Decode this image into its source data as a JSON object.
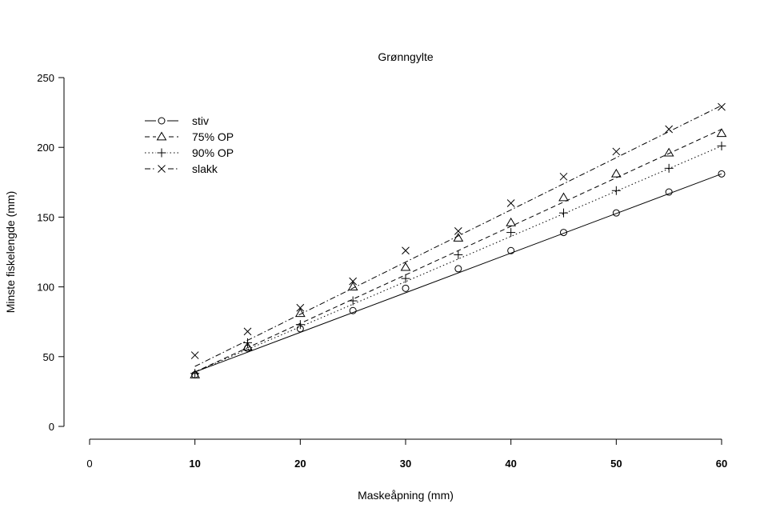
{
  "chart_data": {
    "type": "line",
    "title": "Grønngylte",
    "xlabel": "Maskeåpning (mm)",
    "ylabel": "Minste fiskelengde (mm)",
    "xlim": [
      0,
      60
    ],
    "ylim": [
      0,
      250
    ],
    "xticks": [
      "0",
      "10",
      "20",
      "30",
      "40",
      "50",
      "60"
    ],
    "yticks": [
      "0",
      "50",
      "100",
      "150",
      "200",
      "250"
    ],
    "x": [
      10,
      15,
      20,
      25,
      30,
      35,
      40,
      45,
      50,
      55,
      60
    ],
    "grid": false,
    "legend_position": "top-left",
    "series": [
      {
        "name": "stiv",
        "marker": "circle",
        "line_style": "solid",
        "values": [
          37,
          56,
          70,
          83,
          99,
          113,
          126,
          139,
          153,
          168,
          181
        ],
        "fit": [
          39,
          181
        ]
      },
      {
        "name": "75% OP",
        "marker": "triangle",
        "line_style": "dashed",
        "values": [
          37,
          57,
          81,
          100,
          114,
          135,
          146,
          164,
          181,
          196,
          210
        ],
        "fit": [
          39,
          213
        ]
      },
      {
        "name": "90% OP",
        "marker": "plus",
        "line_style": "dotted",
        "values": [
          38,
          60,
          73,
          90,
          106,
          123,
          139,
          153,
          169,
          185,
          201
        ],
        "fit": [
          39,
          201
        ]
      },
      {
        "name": "slakk",
        "marker": "cross",
        "line_style": "dashdot",
        "values": [
          51,
          68,
          85,
          104,
          126,
          140,
          160,
          179,
          197,
          213,
          229
        ],
        "fit": [
          43,
          230
        ]
      }
    ],
    "colors": {
      "line": "#000000",
      "background": "#ffffff"
    }
  }
}
